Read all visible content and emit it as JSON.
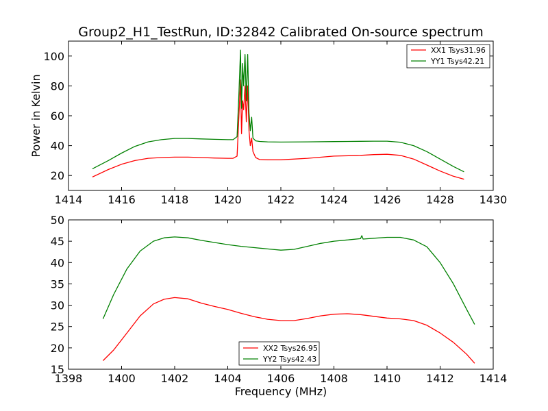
{
  "figure": {
    "background": "#ffffff"
  },
  "chart_data": [
    {
      "type": "line",
      "title": "Group2_H1_TestRun, ID:32842 Calibrated On-source spectrum",
      "xlabel": "",
      "ylabel": "Power in Kelvin",
      "xlim": [
        1414,
        1430
      ],
      "ylim": [
        10,
        110
      ],
      "xticks": [
        1414,
        1416,
        1418,
        1420,
        1422,
        1424,
        1426,
        1428,
        1430
      ],
      "yticks": [
        20,
        40,
        60,
        80,
        100
      ],
      "grid": false,
      "legend_position": "top-right",
      "series": [
        {
          "name": "XX1 Tsys31.96",
          "color": "#ff0000",
          "x": [
            1414.9,
            1415.5,
            1416.0,
            1416.5,
            1417.0,
            1417.5,
            1418.0,
            1418.5,
            1419.0,
            1419.5,
            1420.0,
            1420.2,
            1420.35,
            1420.42,
            1420.48,
            1420.52,
            1420.56,
            1420.6,
            1420.65,
            1420.7,
            1420.75,
            1420.8,
            1420.85,
            1420.9,
            1420.95,
            1421.05,
            1421.2,
            1421.5,
            1422.0,
            1423.0,
            1424.0,
            1425.0,
            1425.5,
            1426.0,
            1426.5,
            1427.0,
            1427.5,
            1428.0,
            1428.5,
            1428.9
          ],
          "y": [
            19,
            24,
            27.5,
            30,
            31.5,
            32,
            32.3,
            32.3,
            32,
            31.7,
            31.5,
            31.5,
            33,
            60,
            84,
            48,
            70,
            64,
            80,
            56,
            80,
            50,
            40,
            45,
            36,
            32,
            30.7,
            30.5,
            30.5,
            31.5,
            33,
            33.5,
            34,
            34.2,
            33.5,
            31,
            27,
            23,
            19.5,
            17.5
          ]
        },
        {
          "name": "YY1 Tsys42.21",
          "color": "#008000",
          "x": [
            1414.9,
            1415.5,
            1416.0,
            1416.5,
            1417.0,
            1417.5,
            1418.0,
            1418.5,
            1419.0,
            1419.5,
            1420.0,
            1420.2,
            1420.35,
            1420.42,
            1420.48,
            1420.52,
            1420.56,
            1420.6,
            1420.65,
            1420.7,
            1420.75,
            1420.8,
            1420.85,
            1420.9,
            1420.95,
            1421.05,
            1421.2,
            1421.5,
            1422.0,
            1423.0,
            1424.0,
            1425.0,
            1425.5,
            1426.0,
            1426.5,
            1427.0,
            1427.5,
            1428.0,
            1428.5,
            1428.9
          ],
          "y": [
            24.5,
            30,
            35,
            39.5,
            42.5,
            44,
            44.8,
            44.8,
            44.5,
            44.2,
            44,
            44,
            46,
            75,
            104,
            65,
            95,
            80,
            101,
            70,
            101,
            62,
            50,
            59,
            45,
            43.2,
            42.8,
            42.5,
            42.4,
            42.5,
            42.7,
            42.9,
            43,
            43,
            42.3,
            40,
            36,
            31,
            26,
            22.5
          ]
        }
      ]
    },
    {
      "type": "line",
      "title": "",
      "xlabel": "Frequency (MHz)",
      "ylabel": "",
      "xlim": [
        1398,
        1414
      ],
      "ylim": [
        15,
        50
      ],
      "xticks": [
        1398,
        1400,
        1402,
        1404,
        1406,
        1408,
        1410,
        1412,
        1414
      ],
      "yticks": [
        15,
        20,
        25,
        30,
        35,
        40,
        45,
        50
      ],
      "grid": false,
      "legend_position": "bottom-center",
      "series": [
        {
          "name": "XX2 Tsys26.95",
          "color": "#ff0000",
          "x": [
            1399.3,
            1399.7,
            1400.2,
            1400.7,
            1401.2,
            1401.6,
            1402.0,
            1402.5,
            1403.0,
            1403.5,
            1404.0,
            1404.5,
            1405.0,
            1405.5,
            1406.0,
            1406.5,
            1407.0,
            1407.5,
            1408.0,
            1408.5,
            1409.0,
            1409.5,
            1410.0,
            1410.5,
            1411.0,
            1411.5,
            1412.0,
            1412.5,
            1413.0,
            1413.3
          ],
          "y": [
            17,
            19.5,
            23.5,
            27.5,
            30.3,
            31.4,
            31.8,
            31.5,
            30.5,
            29.7,
            29,
            28.1,
            27.3,
            26.7,
            26.4,
            26.4,
            26.9,
            27.5,
            27.9,
            28,
            27.8,
            27.4,
            27,
            26.8,
            26.4,
            25.3,
            23.5,
            21.3,
            18.5,
            16.4
          ]
        },
        {
          "name": "YY2 Tsys42.43",
          "color": "#008000",
          "x": [
            1399.3,
            1399.7,
            1400.2,
            1400.7,
            1401.2,
            1401.6,
            1402.0,
            1402.5,
            1403.0,
            1403.5,
            1404.0,
            1404.5,
            1405.0,
            1405.5,
            1406.0,
            1406.5,
            1407.0,
            1407.5,
            1408.0,
            1408.5,
            1409.0,
            1409.05,
            1409.1,
            1409.5,
            1410.0,
            1410.5,
            1411.0,
            1411.5,
            1412.0,
            1412.5,
            1413.0,
            1413.3
          ],
          "y": [
            26.8,
            32.5,
            38.5,
            42.7,
            45,
            45.8,
            46,
            45.8,
            45.2,
            44.7,
            44.2,
            43.8,
            43.5,
            43.2,
            42.9,
            43.1,
            43.8,
            44.5,
            45,
            45.3,
            45.6,
            46.3,
            45.5,
            45.7,
            45.9,
            45.9,
            45.3,
            43.7,
            40,
            35,
            29,
            25.5
          ]
        }
      ]
    }
  ]
}
